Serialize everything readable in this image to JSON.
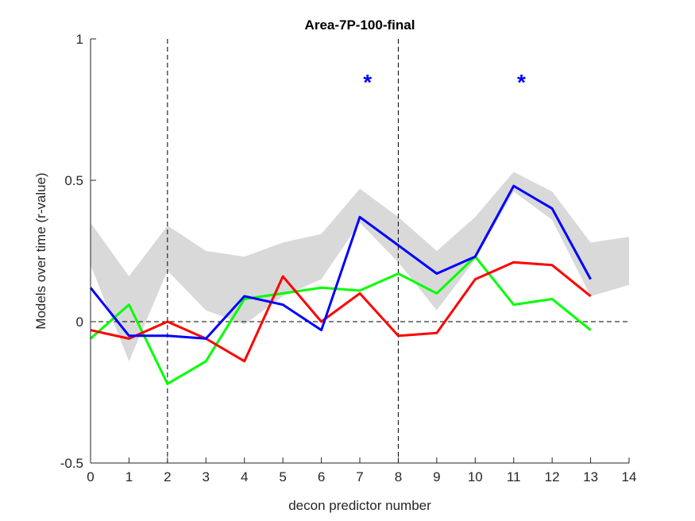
{
  "chart_data": {
    "type": "line",
    "title": "Area-7P-100-final",
    "xlabel": "decon predictor number",
    "ylabel": "Models over time (r-value)",
    "xlim": [
      0,
      14
    ],
    "ylim": [
      -0.5,
      1
    ],
    "xticks": [
      0,
      1,
      2,
      3,
      4,
      5,
      6,
      7,
      8,
      9,
      10,
      11,
      12,
      13,
      14
    ],
    "yticks": [
      -0.5,
      0,
      0.5,
      1
    ],
    "ytick_labels": [
      "-0.5",
      "0",
      "0.5",
      "1"
    ],
    "grid": false,
    "reference_lines": {
      "horizontal_dashed_y": 0,
      "vertical_dashed_x": [
        2,
        8
      ]
    },
    "band": {
      "color": "#d9d9d9",
      "x": [
        0,
        1,
        2,
        3,
        4,
        5,
        6,
        7,
        8,
        9,
        10,
        11,
        12,
        13,
        14
      ],
      "upper": [
        0.35,
        0.16,
        0.34,
        0.25,
        0.23,
        0.28,
        0.31,
        0.47,
        0.37,
        0.25,
        0.37,
        0.53,
        0.46,
        0.28,
        0.3
      ],
      "lower": [
        0.2,
        -0.14,
        0.18,
        0.04,
        -0.01,
        0.09,
        0.15,
        0.35,
        0.21,
        0.04,
        0.22,
        0.46,
        0.36,
        0.09,
        0.13
      ]
    },
    "series": [
      {
        "color": "#00ff00",
        "x": [
          0,
          1,
          2,
          3,
          4,
          5,
          6,
          7,
          8,
          9,
          10,
          11,
          12,
          13
        ],
        "values": [
          -0.06,
          0.06,
          -0.22,
          -0.14,
          0.08,
          0.1,
          0.12,
          0.11,
          0.17,
          0.1,
          0.23,
          0.06,
          0.08,
          -0.03
        ]
      },
      {
        "color": "#ff0000",
        "x": [
          0,
          1,
          2,
          3,
          4,
          5,
          6,
          7,
          8,
          9,
          10,
          11,
          12,
          13
        ],
        "values": [
          -0.03,
          -0.06,
          0.0,
          -0.06,
          -0.14,
          0.16,
          0.0,
          0.1,
          -0.05,
          -0.04,
          0.15,
          0.21,
          0.2,
          0.09
        ]
      },
      {
        "color": "#0000ff",
        "x": [
          0,
          1,
          2,
          3,
          4,
          5,
          6,
          7,
          8,
          9,
          10,
          11,
          12,
          13
        ],
        "values": [
          0.12,
          -0.05,
          -0.05,
          -0.06,
          0.09,
          0.06,
          -0.03,
          0.37,
          0.27,
          0.17,
          0.23,
          0.48,
          0.4,
          0.15
        ]
      }
    ],
    "annotations": [
      {
        "text": "*",
        "x": 7.2,
        "y": 0.86,
        "color": "#0000ff"
      },
      {
        "text": "*",
        "x": 11.2,
        "y": 0.86,
        "color": "#0000ff"
      }
    ]
  }
}
